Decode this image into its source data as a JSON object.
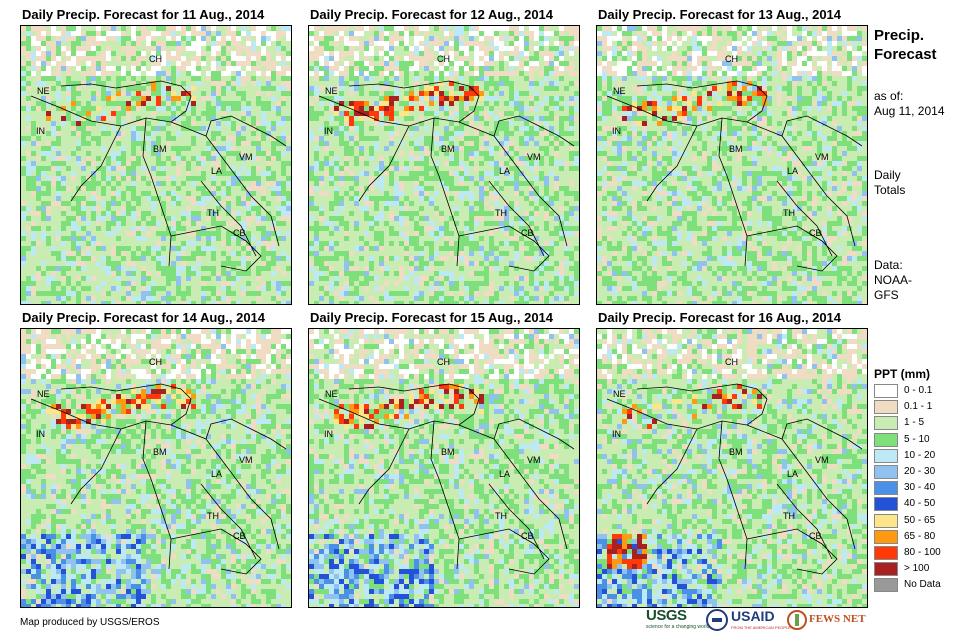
{
  "panels": [
    {
      "title": "Daily Precip. Forecast for 11 Aug., 2014",
      "seed": 11
    },
    {
      "title": "Daily Precip. Forecast for 12 Aug., 2014",
      "seed": 12
    },
    {
      "title": "Daily Precip. Forecast for 13 Aug., 2014",
      "seed": 13
    },
    {
      "title": "Daily Precip. Forecast for 14 Aug., 2014",
      "seed": 14
    },
    {
      "title": "Daily Precip. Forecast for 15 Aug., 2014",
      "seed": 15
    },
    {
      "title": "Daily Precip. Forecast for 16 Aug., 2014",
      "seed": 16
    }
  ],
  "map_labels": {
    "ch": "CH",
    "ne": "NE",
    "in": "IN",
    "bm": "BM",
    "la": "LA",
    "vm": "VM",
    "th": "TH",
    "cb": "CB"
  },
  "side": {
    "title_line1": "Precip.",
    "title_line2": "Forecast",
    "asof_line1": "as of:",
    "asof_line2": "Aug 11, 2014",
    "totals_line1": "Daily",
    "totals_line2": "Totals",
    "data_line1": "Data:",
    "data_line2": "NOAA-",
    "data_line3": "GFS"
  },
  "legend": {
    "title": "PPT (mm)",
    "items": [
      {
        "label": "0 - 0.1",
        "color": "#ffffff"
      },
      {
        "label": "0.1 - 1",
        "color": "#f0dcc2"
      },
      {
        "label": "1 - 5",
        "color": "#c9ecb2"
      },
      {
        "label": "5 - 10",
        "color": "#7ee07a"
      },
      {
        "label": "10 - 20",
        "color": "#bde9f5"
      },
      {
        "label": "20 - 30",
        "color": "#8fc2ef"
      },
      {
        "label": "30 - 40",
        "color": "#4a90e6"
      },
      {
        "label": "40 - 50",
        "color": "#2352d8"
      },
      {
        "label": "50 - 65",
        "color": "#ffe58a"
      },
      {
        "label": "65 - 80",
        "color": "#ff9a10"
      },
      {
        "label": "80 - 100",
        "color": "#ff3a08"
      },
      {
        "label": "> 100",
        "color": "#a8201f"
      },
      {
        "label": "No Data",
        "color": "#999999"
      }
    ]
  },
  "credit": "Map produced by USGS/EROS",
  "logos": {
    "usgs": "USGS",
    "usgs_tag": "science for a changing world",
    "usaid": "USAID",
    "usaid_tag": "FROM THE AMERICAN PEOPLE",
    "fewsnet": "FEWS NET"
  }
}
